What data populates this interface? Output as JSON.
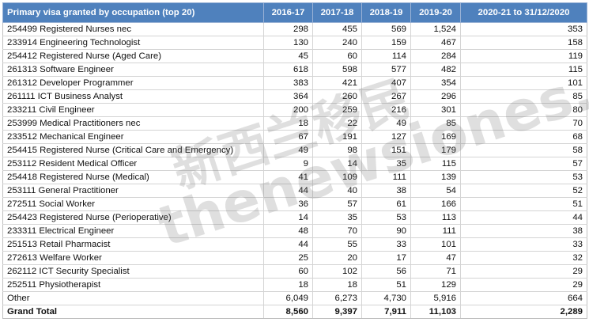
{
  "table": {
    "headers": [
      "Primary visa granted by occupation (top 20)",
      "2016-17",
      "2017-18",
      "2018-19",
      "2019-20",
      "2020-21 to 31/12/2020"
    ],
    "rows": [
      [
        "254499 Registered Nurses nec",
        "298",
        "455",
        "569",
        "1,524",
        "353"
      ],
      [
        "233914 Engineering Technologist",
        "130",
        "240",
        "159",
        "467",
        "158"
      ],
      [
        "254412 Registered Nurse (Aged Care)",
        "45",
        "60",
        "114",
        "284",
        "119"
      ],
      [
        "261313 Software Engineer",
        "618",
        "598",
        "577",
        "482",
        "115"
      ],
      [
        "261312 Developer Programmer",
        "383",
        "421",
        "407",
        "354",
        "101"
      ],
      [
        "261111 ICT Business Analyst",
        "364",
        "260",
        "267",
        "296",
        "85"
      ],
      [
        "233211 Civil Engineer",
        "200",
        "259",
        "216",
        "301",
        "80"
      ],
      [
        "253999 Medical Practitioners nec",
        "18",
        "22",
        "49",
        "85",
        "70"
      ],
      [
        "233512 Mechanical Engineer",
        "67",
        "191",
        "127",
        "169",
        "68"
      ],
      [
        "254415 Registered Nurse (Critical Care and Emergency)",
        "49",
        "98",
        "151",
        "179",
        "58"
      ],
      [
        "253112 Resident Medical Officer",
        "9",
        "14",
        "35",
        "115",
        "57"
      ],
      [
        "254418 Registered Nurse (Medical)",
        "41",
        "109",
        "111",
        "139",
        "53"
      ],
      [
        "253111 General Practitioner",
        "44",
        "40",
        "38",
        "54",
        "52"
      ],
      [
        "272511 Social Worker",
        "36",
        "57",
        "61",
        "166",
        "51"
      ],
      [
        "254423 Registered Nurse (Perioperative)",
        "14",
        "35",
        "53",
        "113",
        "44"
      ],
      [
        "233311 Electrical Engineer",
        "48",
        "70",
        "90",
        "111",
        "38"
      ],
      [
        "251513 Retail Pharmacist",
        "44",
        "55",
        "33",
        "101",
        "33"
      ],
      [
        "272613 Welfare Worker",
        "25",
        "20",
        "17",
        "47",
        "32"
      ],
      [
        "262112 ICT Security Specialist",
        "60",
        "102",
        "56",
        "71",
        "29"
      ],
      [
        "252511 Physiotherapist",
        "18",
        "18",
        "51",
        "129",
        "29"
      ],
      [
        "Other",
        "6,049",
        "6,273",
        "4,730",
        "5,916",
        "664"
      ]
    ],
    "total": [
      "Grand Total",
      "8,560",
      "9,397",
      "7,911",
      "11,103",
      "2,289"
    ]
  },
  "watermark": {
    "line1": "新西兰移民",
    "line2": "thenewsiones.com"
  }
}
